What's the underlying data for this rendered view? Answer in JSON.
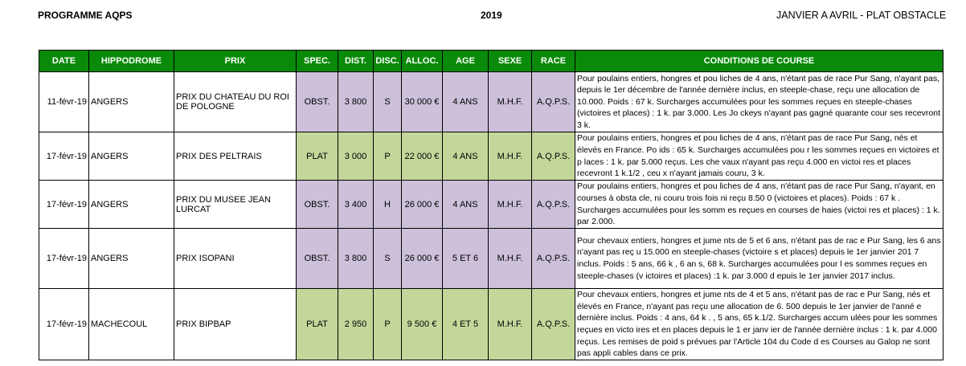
{
  "header": {
    "left": "PROGRAMME AQPS",
    "center": "2019",
    "right": "JANVIER A AVRIL - PLAT OBSTACLE"
  },
  "columns": [
    "DATE",
    "HIPPODROME",
    "PRIX",
    "SPEC.",
    "DIST.",
    "DISC.",
    "ALLOC.",
    "AGE",
    "SEXE",
    "RACE",
    "CONDITIONS DE COURSE"
  ],
  "colors": {
    "header_bg": "#0a8a0a",
    "obst_bg": "#ccc0da",
    "plat_bg": "#c4d79b"
  },
  "rows": [
    {
      "date": "11-févr-19",
      "hippodrome": "ANGERS",
      "prix": "PRIX DU CHATEAU DU ROI DE POLOGNE",
      "spec": "OBST.",
      "dist": "3 800",
      "disc": "S",
      "alloc": "30 000 €",
      "age": "4 ANS",
      "sexe": "M.H.F.",
      "race": "A.Q.P.S.",
      "conditions": "Pour poulains entiers, hongres et pou liches de 4 ans, n'étant pas de race Pur Sang, n'ayant pas, depuis le 1er décembre de l'année dernière inclus, en steeple-chase, reçu une allocation de 10.000. Poids : 67 k. Surcharges accumulées pour les sommes reçues en steeple-chases (victoires et places) : 1 k. par 3.000. Les Jo ckeys n'ayant pas gagné quarante cour ses recevront 3 k."
    },
    {
      "date": "17-févr-19",
      "hippodrome": "ANGERS",
      "prix": "PRIX DES PELTRAIS",
      "spec": "PLAT",
      "dist": "3 000",
      "disc": "P",
      "alloc": "22 000 €",
      "age": "4 ANS",
      "sexe": "M.H.F.",
      "race": "A.Q.P.S.",
      "conditions": "Pour poulains entiers, hongres et pou liches de 4 ans, n'étant pas de race Pur Sang, nés et élevés en France. Po ids : 65 k. Surcharges accumulées pou r les sommes reçues en victoires et p laces : 1 k. par 5.000 reçus. Les che vaux n'ayant pas reçu 4.000 en victoi res et places recevront 1 k.1/2 , ceu x n'ayant jamais couru, 3 k."
    },
    {
      "date": "17-févr-19",
      "hippodrome": "ANGERS",
      "prix": "PRIX DU MUSEE JEAN LURCAT",
      "spec": "OBST.",
      "dist": "3 400",
      "disc": "H",
      "alloc": "26 000 €",
      "age": "4 ANS",
      "sexe": "M.H.F.",
      "race": "A.Q.P.S.",
      "conditions": "Pour poulains entiers, hongres et pou liches de 4 ans, n'étant pas de race Pur Sang, n'ayant, en courses à obsta cle, ni couru trois fois ni reçu 8.50 0 (victoires et places). Poids : 67 k . Surcharges accumulées pour les somm es reçues en courses de haies (victoi res et places) : 1 k. par 2.000."
    },
    {
      "date": "17-févr-19",
      "hippodrome": "ANGERS",
      "prix": "PRIX ISOPANI",
      "spec": "OBST.",
      "dist": "3 800",
      "disc": "S",
      "alloc": "26 000 €",
      "age": "5 ET 6",
      "sexe": "M.H.F.",
      "race": "A.Q.P.S.",
      "conditions": "Pour chevaux entiers, hongres et jume nts de 5 et 6 ans, n'étant pas de rac e Pur Sang, les 6 ans n'ayant pas reç u 15.000 en steeple-chases (victoire s et places) depuis le 1er janvier 201 7 inclus. Poids : 5 ans, 66 k , 6 an s, 68 k. Surcharges accumulées pour l es sommes reçues en steeple-chases (v ictoires et places) :1 k. par 3.000 d epuis le 1er janvier 2017 inclus."
    },
    {
      "date": "17-févr-19",
      "hippodrome": "MACHECOUL",
      "prix": "PRIX BIPBAP",
      "spec": "PLAT",
      "dist": "2 950",
      "disc": "P",
      "alloc": "9 500 €",
      "age": "4 ET 5",
      "sexe": "M.H.F.",
      "race": "A.Q.P.S.",
      "conditions": "Pour chevaux entiers, hongres et jume nts de 4 et 5 ans, n'étant pas de rac e Pur Sang, nés et élevés en France, n'ayant pas reçu une allocation de 6. 500 depuis le 1er janvier de l'anné e dernière inclus. Poids : 4 ans, 64 k . , 5 ans, 65 k.1/2. Surcharges accum ulées pour les sommes reçues en victo ires et en places depuis le 1 er janv ier de l'année dernière inclus : 1 k. par 4.000 reçus. Les remises de poid s prévues par l'Article 104 du Code d es Courses au Galop ne sont pas appli cables dans ce prix."
    }
  ]
}
